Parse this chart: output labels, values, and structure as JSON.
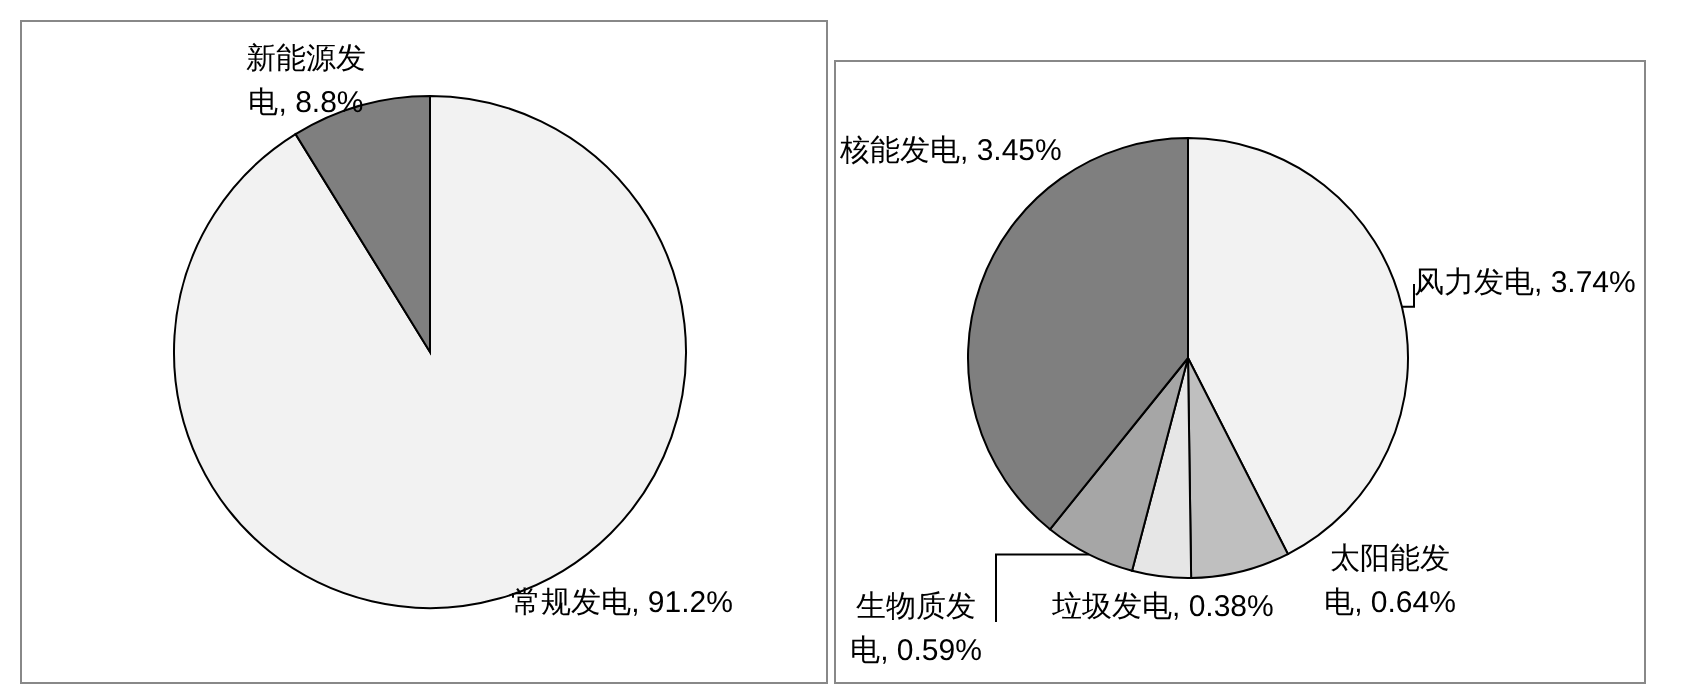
{
  "chart_data": [
    {
      "type": "pie",
      "categories": [
        "常规发电",
        "新能源发电"
      ],
      "values": [
        91.2,
        8.8
      ],
      "value_labels": [
        "91.2%",
        "8.8%"
      ],
      "colors": [
        "#f2f2f2",
        "#7f7f7f"
      ]
    },
    {
      "type": "pie",
      "categories": [
        "风力发电",
        "太阳能发电",
        "垃圾发电",
        "生物质发电",
        "核能发电"
      ],
      "values": [
        3.74,
        0.64,
        0.38,
        0.59,
        3.45
      ],
      "value_labels": [
        "3.74%",
        "0.64%",
        "0.38%",
        "0.59%",
        "3.45%"
      ],
      "colors": [
        "#f2f2f2",
        "#bfbfbf",
        "#e6e6e6",
        "#a6a6a6",
        "#7f7f7f"
      ]
    }
  ]
}
